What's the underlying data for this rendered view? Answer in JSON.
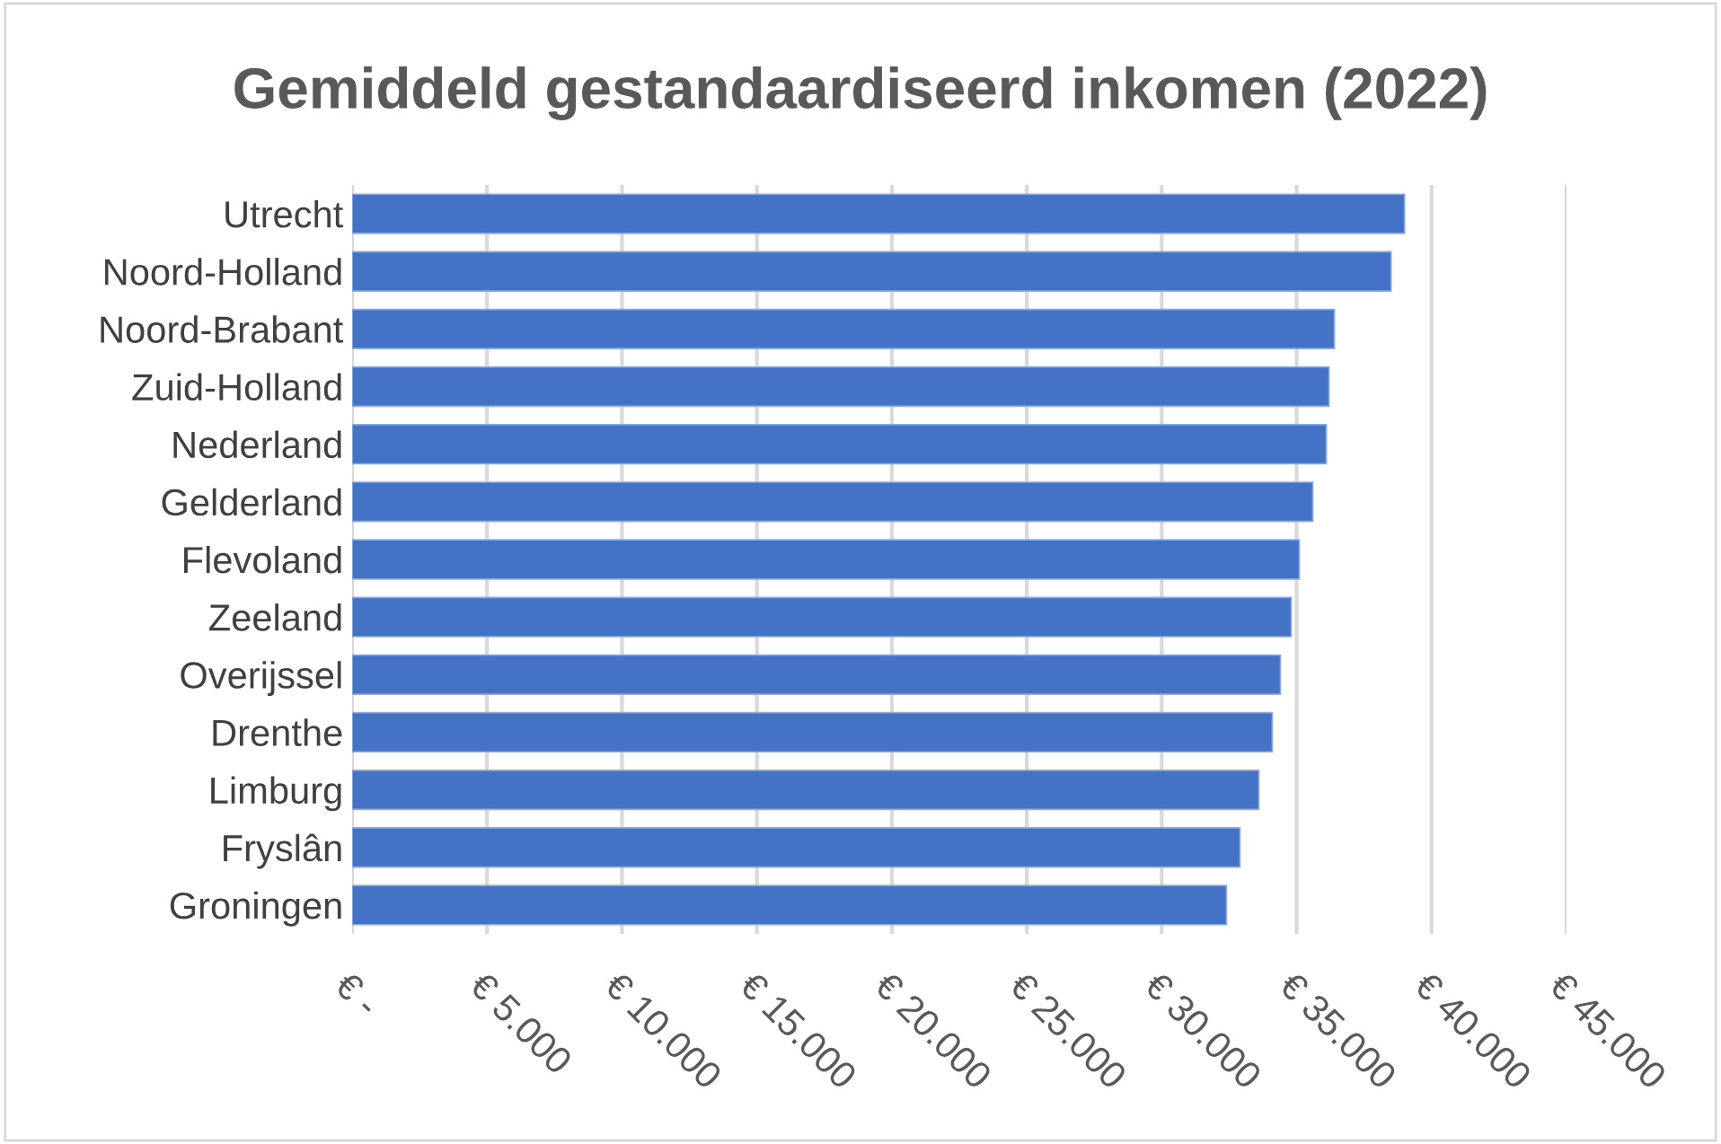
{
  "chart_data": {
    "type": "bar",
    "orientation": "horizontal",
    "title": "Gemiddeld gestandaardiseerd inkomen (2022)",
    "categories": [
      "Utrecht",
      "Noord-Holland",
      "Noord-Brabant",
      "Zuid-Holland",
      "Nederland",
      "Gelderland",
      "Flevoland",
      "Zeeland",
      "Overijssel",
      "Drenthe",
      "Limburg",
      "Fryslân",
      "Groningen"
    ],
    "values": [
      39000,
      38500,
      36400,
      36200,
      36100,
      35600,
      35100,
      34800,
      34400,
      34100,
      33600,
      32900,
      32400
    ],
    "color": "#4472c4",
    "xlim": [
      0,
      45000
    ],
    "xticks": [
      {
        "value": 0,
        "label": "€ -"
      },
      {
        "value": 5000,
        "label": "€ 5.000"
      },
      {
        "value": 10000,
        "label": "€ 10.000"
      },
      {
        "value": 15000,
        "label": "€ 15.000"
      },
      {
        "value": 20000,
        "label": "€ 20.000"
      },
      {
        "value": 25000,
        "label": "€ 25.000"
      },
      {
        "value": 30000,
        "label": "€ 30.000"
      },
      {
        "value": 35000,
        "label": "€ 35.000"
      },
      {
        "value": 40000,
        "label": "€ 40.000"
      },
      {
        "value": 45000,
        "label": "€ 45.000"
      }
    ],
    "grid": "x",
    "legend": false
  }
}
